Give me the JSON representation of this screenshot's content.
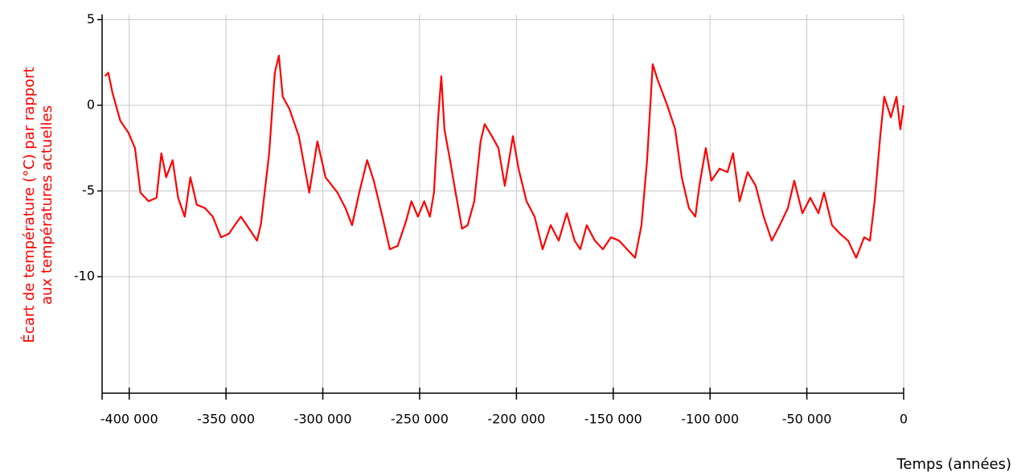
{
  "chart_data": {
    "type": "line",
    "y_label": [
      "Écart de température (°C) par rapport",
      "aux températures actuelles"
    ],
    "x_label": "Temps (années)",
    "xlim": [
      -414000,
      0
    ],
    "ylim": [
      -16.8,
      5.3
    ],
    "xticks": [
      {
        "value": -400000,
        "label": "-400 000"
      },
      {
        "value": -350000,
        "label": "-350 000"
      },
      {
        "value": -300000,
        "label": "-300 000"
      },
      {
        "value": -250000,
        "label": "-250 000"
      },
      {
        "value": -200000,
        "label": "-200 000"
      },
      {
        "value": -150000,
        "label": "-150 000"
      },
      {
        "value": -100000,
        "label": "-100 000"
      },
      {
        "value": -50000,
        "label": "-50 000"
      },
      0
    ],
    "yticks": [
      5,
      0,
      -5,
      -10
    ],
    "grid": true,
    "series": [
      {
        "color": "#ff0000",
        "x": [
          -412500,
          -410800,
          -408700,
          -404600,
          -400400,
          -397000,
          -394200,
          -390000,
          -385900,
          -383400,
          -380900,
          -377600,
          -374700,
          -371300,
          -368400,
          -365100,
          -360900,
          -356800,
          -352600,
          -348500,
          -344300,
          -342300,
          -338100,
          -334000,
          -331900,
          -327700,
          -324800,
          -322700,
          -320700,
          -317300,
          -312400,
          -307000,
          -302800,
          -298600,
          -292400,
          -288300,
          -284900,
          -281200,
          -277100,
          -273700,
          -269600,
          -265400,
          -261300,
          -257100,
          -254200,
          -250900,
          -247600,
          -244700,
          -242600,
          -240500,
          -238800,
          -237200,
          -234300,
          -231400,
          -228100,
          -225200,
          -221800,
          -218500,
          -216400,
          -212700,
          -209300,
          -206000,
          -201800,
          -198900,
          -194800,
          -190600,
          -186500,
          -182300,
          -178200,
          -174000,
          -169900,
          -167000,
          -163700,
          -159500,
          -155300,
          -151200,
          -147000,
          -142900,
          -138700,
          -135400,
          -132500,
          -129600,
          -127100,
          -122100,
          -118000,
          -114600,
          -110900,
          -107600,
          -105500,
          -102200,
          -99300,
          -95100,
          -91000,
          -88100,
          -84700,
          -80600,
          -76400,
          -72300,
          -68100,
          -64000,
          -59800,
          -56500,
          -52300,
          -48200,
          -44000,
          -41100,
          -37000,
          -32800,
          -28700,
          -24500,
          -20400,
          -17400,
          -15000,
          -12100,
          -10000,
          -6600,
          -3700,
          -1700,
          0
        ],
        "values": [
          1.7,
          1.9,
          0.75,
          -0.9,
          -1.6,
          -2.5,
          -5.1,
          -5.6,
          -5.4,
          -2.8,
          -4.2,
          -3.2,
          -5.4,
          -6.5,
          -4.2,
          -5.8,
          -6.0,
          -6.5,
          -7.7,
          -7.5,
          -6.8,
          -6.5,
          -7.2,
          -7.9,
          -6.9,
          -2.8,
          1.9,
          2.9,
          0.5,
          -0.2,
          -1.8,
          -5.1,
          -2.1,
          -4.2,
          -5.1,
          -6.0,
          -7.0,
          -5.1,
          -3.2,
          -4.4,
          -6.3,
          -8.4,
          -8.2,
          -6.8,
          -5.6,
          -6.5,
          -5.6,
          -6.5,
          -5.1,
          -0.9,
          1.7,
          -1.4,
          -3.2,
          -5.1,
          -7.2,
          -7.0,
          -5.6,
          -2.1,
          -1.1,
          -1.8,
          -2.5,
          -4.7,
          -1.8,
          -3.7,
          -5.6,
          -6.5,
          -8.4,
          -7.0,
          -7.9,
          -6.3,
          -7.9,
          -8.4,
          -7.0,
          -7.9,
          -8.4,
          -7.7,
          -7.9,
          -8.4,
          -8.9,
          -7.0,
          -3.2,
          2.4,
          1.5,
          0.0,
          -1.4,
          -4.2,
          -6.0,
          -6.5,
          -4.7,
          -2.5,
          -4.4,
          -3.7,
          -3.9,
          -2.8,
          -5.6,
          -3.9,
          -4.7,
          -6.5,
          -7.9,
          -7.0,
          -6.0,
          -4.4,
          -6.3,
          -5.4,
          -6.3,
          -5.1,
          -7.0,
          -7.5,
          -7.9,
          -8.9,
          -7.7,
          -7.9,
          -5.6,
          -1.8,
          0.5,
          -0.7,
          0.5,
          -1.4,
          0.0
        ]
      }
    ]
  }
}
